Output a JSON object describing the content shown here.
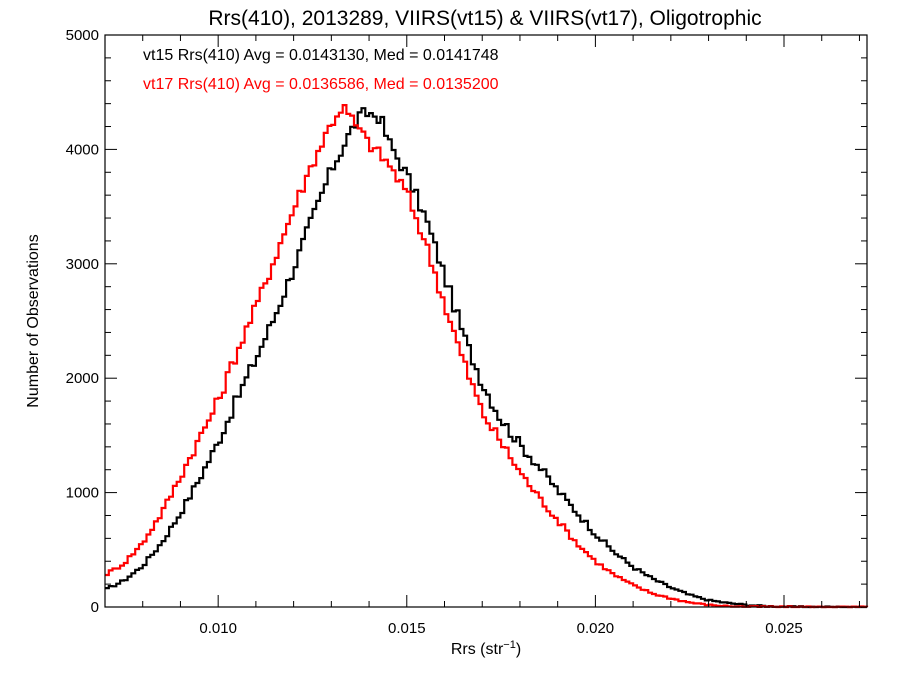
{
  "chart_data": {
    "type": "line",
    "title": "Rrs(410), 2013289, VIIRS(vt15) & VIIRS(vt17), Oligotrophic",
    "xlabel": "Rrs (str",
    "xlabel_sup": "−1",
    "xlabel_close": ")",
    "ylabel": "Number of Observations",
    "xlim": [
      0.007,
      0.0272
    ],
    "ylim": [
      0,
      5000
    ],
    "xticks": [
      0.01,
      0.015,
      0.02,
      0.025
    ],
    "xtick_labels": [
      "0.010",
      "0.015",
      "0.020",
      "0.025"
    ],
    "yticks": [
      0,
      1000,
      2000,
      3000,
      4000,
      5000
    ],
    "ytick_labels": [
      "0",
      "1000",
      "2000",
      "3000",
      "4000",
      "5000"
    ],
    "grid": false,
    "legend_position": "top-left",
    "series": [
      {
        "name": "vt15",
        "legend_text": "vt15 Rrs(410) Avg = 0.0143130, Med = 0.0141748",
        "color": "#000000",
        "points": [
          [
            0.007,
            150
          ],
          [
            0.0075,
            230
          ],
          [
            0.008,
            360
          ],
          [
            0.0085,
            560
          ],
          [
            0.009,
            820
          ],
          [
            0.0095,
            1120
          ],
          [
            0.01,
            1440
          ],
          [
            0.0105,
            1820
          ],
          [
            0.011,
            2170
          ],
          [
            0.0115,
            2540
          ],
          [
            0.012,
            2960
          ],
          [
            0.0125,
            3400
          ],
          [
            0.013,
            3820
          ],
          [
            0.0135,
            4150
          ],
          [
            0.0138,
            4300
          ],
          [
            0.014,
            4320
          ],
          [
            0.0143,
            4280
          ],
          [
            0.0145,
            4080
          ],
          [
            0.015,
            3780
          ],
          [
            0.0155,
            3400
          ],
          [
            0.016,
            2900
          ],
          [
            0.0165,
            2380
          ],
          [
            0.017,
            1960
          ],
          [
            0.0175,
            1640
          ],
          [
            0.018,
            1420
          ],
          [
            0.0185,
            1230
          ],
          [
            0.019,
            1020
          ],
          [
            0.0195,
            830
          ],
          [
            0.02,
            640
          ],
          [
            0.0205,
            480
          ],
          [
            0.021,
            350
          ],
          [
            0.0215,
            250
          ],
          [
            0.022,
            170
          ],
          [
            0.0225,
            105
          ],
          [
            0.023,
            60
          ],
          [
            0.0235,
            35
          ],
          [
            0.024,
            18
          ],
          [
            0.0245,
            8
          ],
          [
            0.025,
            3
          ],
          [
            0.026,
            1
          ],
          [
            0.0272,
            0
          ]
        ]
      },
      {
        "name": "vt17",
        "legend_text": "vt17 Rrs(410) Avg = 0.0136586, Med = 0.0135200",
        "color": "#ff0000",
        "points": [
          [
            0.007,
            280
          ],
          [
            0.0075,
            380
          ],
          [
            0.008,
            560
          ],
          [
            0.0085,
            820
          ],
          [
            0.009,
            1140
          ],
          [
            0.0095,
            1470
          ],
          [
            0.01,
            1800
          ],
          [
            0.0105,
            2230
          ],
          [
            0.011,
            2620
          ],
          [
            0.0115,
            3050
          ],
          [
            0.012,
            3480
          ],
          [
            0.0125,
            3880
          ],
          [
            0.013,
            4230
          ],
          [
            0.0133,
            4380
          ],
          [
            0.0135,
            4280
          ],
          [
            0.014,
            4050
          ],
          [
            0.0145,
            3880
          ],
          [
            0.015,
            3620
          ],
          [
            0.0155,
            3180
          ],
          [
            0.016,
            2650
          ],
          [
            0.0165,
            2150
          ],
          [
            0.017,
            1700
          ],
          [
            0.0175,
            1440
          ],
          [
            0.018,
            1180
          ],
          [
            0.0185,
            960
          ],
          [
            0.019,
            760
          ],
          [
            0.0195,
            560
          ],
          [
            0.02,
            400
          ],
          [
            0.0205,
            280
          ],
          [
            0.021,
            190
          ],
          [
            0.0215,
            120
          ],
          [
            0.022,
            75
          ],
          [
            0.0225,
            40
          ],
          [
            0.023,
            18
          ],
          [
            0.0235,
            8
          ],
          [
            0.024,
            3
          ],
          [
            0.025,
            1
          ],
          [
            0.0272,
            0
          ]
        ]
      }
    ]
  }
}
